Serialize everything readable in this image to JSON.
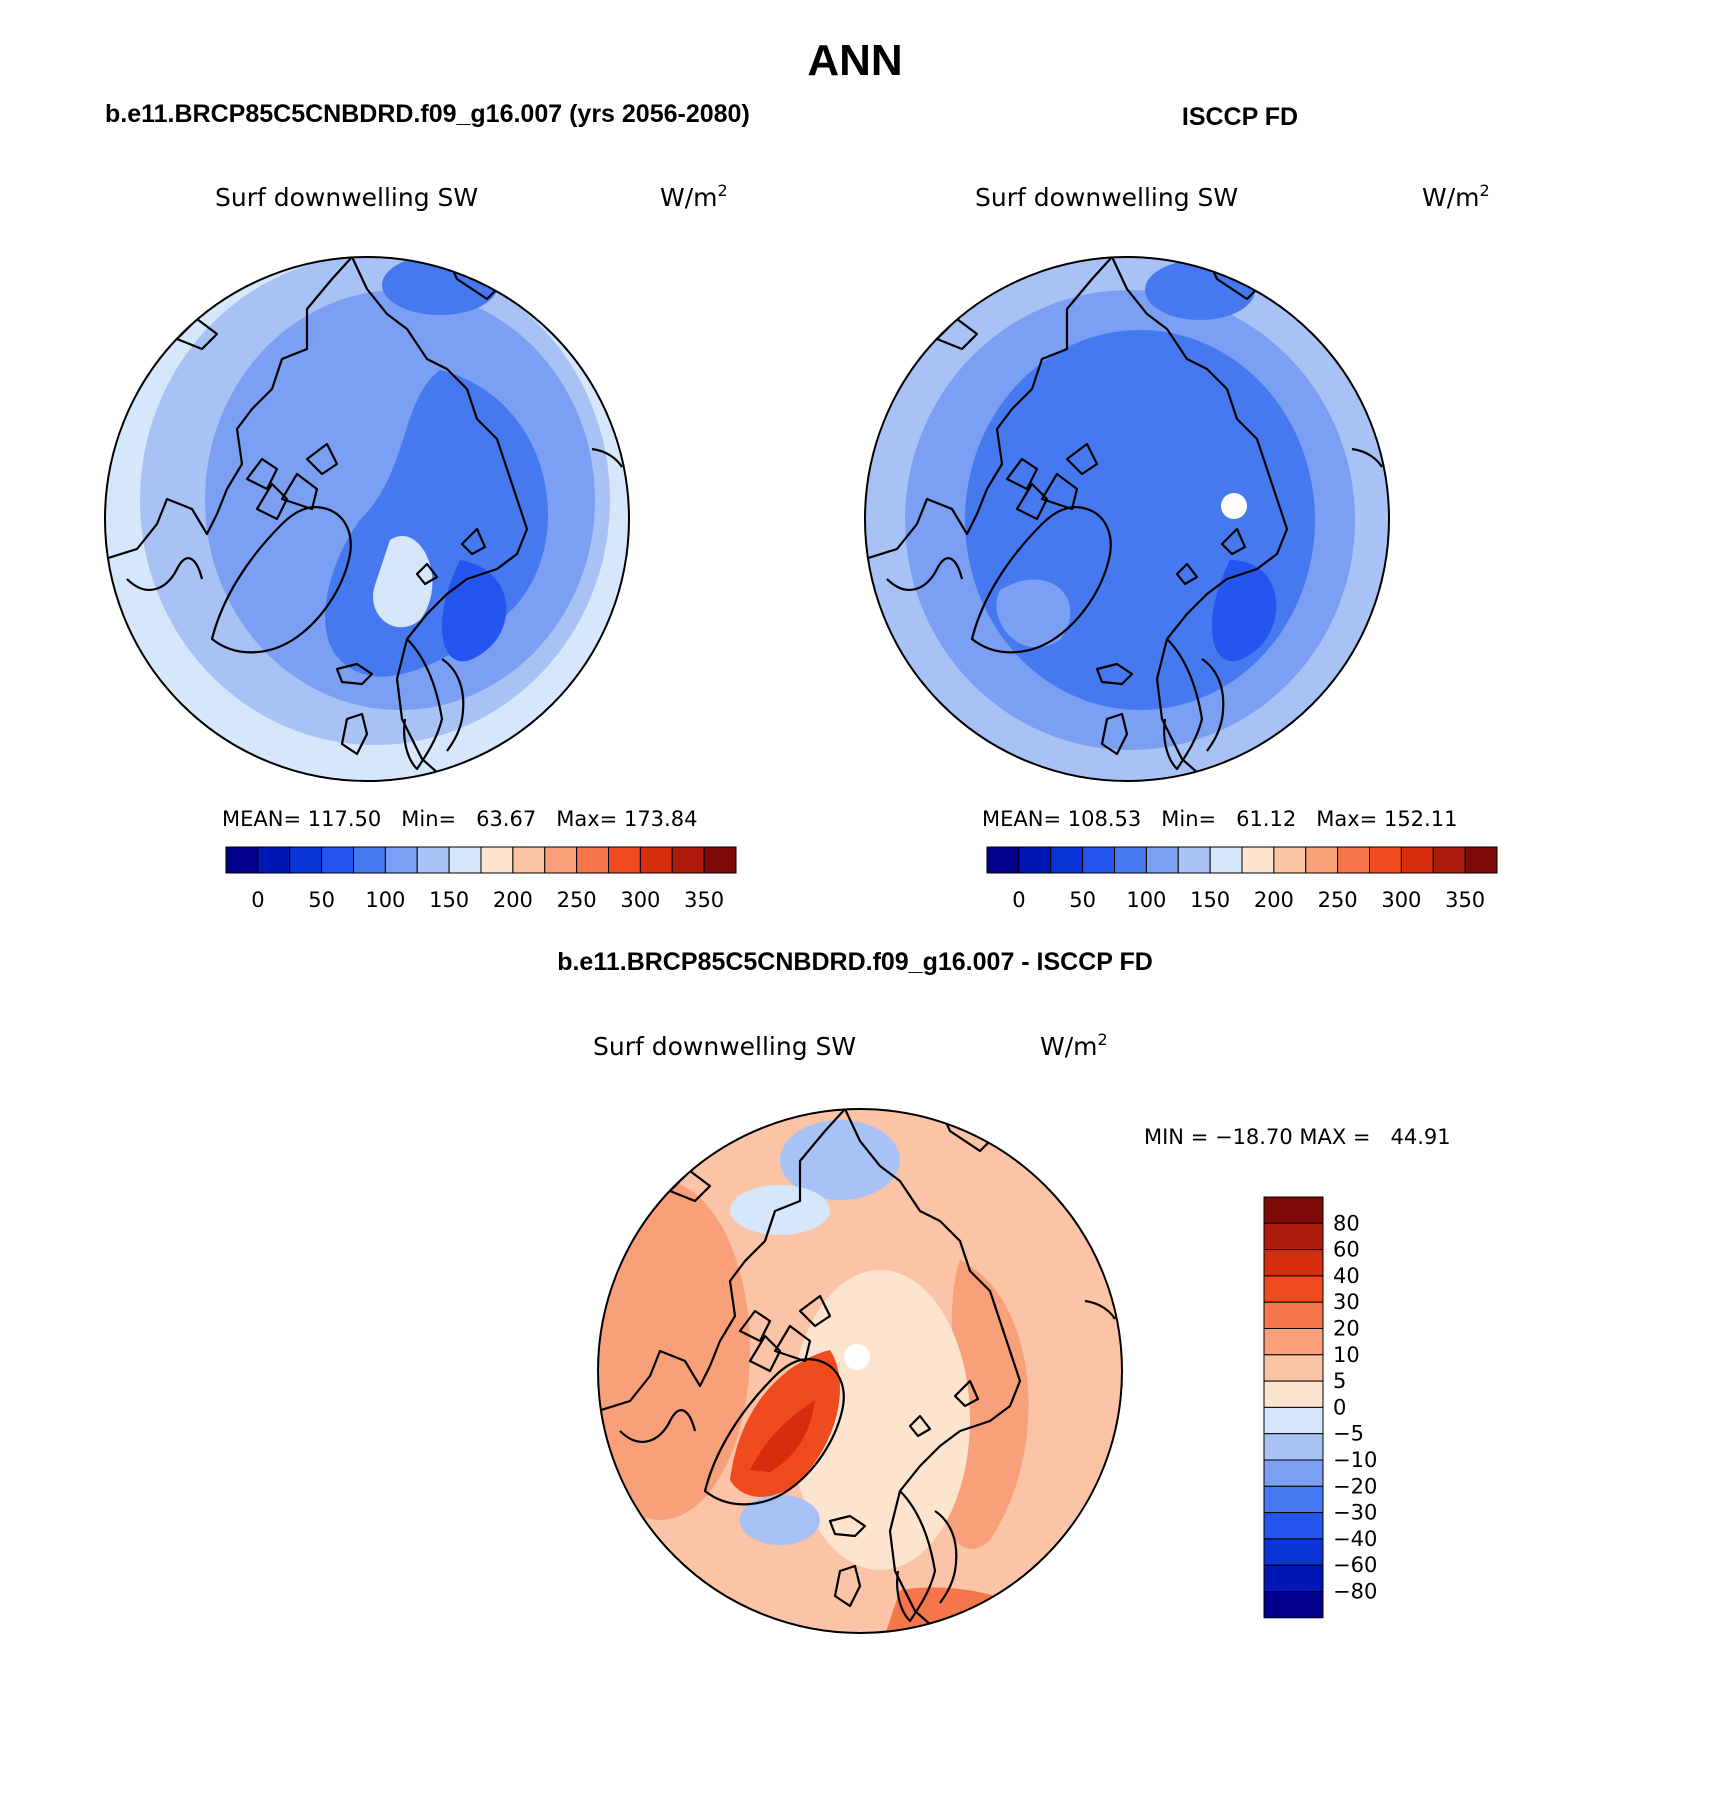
{
  "page_title": "ANN",
  "panels": [
    {
      "title": "b.e11.BRCP85C5CNBDRD.f09_g16.007 (yrs 2056-2080)",
      "variable": "Surf downwelling SW",
      "units": "W/m",
      "units_exp": "2",
      "stats": "MEAN= 117.50   Min=   63.67   Max= 173.84",
      "mean": 117.5,
      "min": 63.67,
      "max": 173.84
    },
    {
      "title": "ISCCP FD",
      "variable": "Surf downwelling SW",
      "units": "W/m",
      "units_exp": "2",
      "stats": "MEAN= 108.53   Min=   61.12   Max= 152.11",
      "mean": 108.53,
      "min": 61.12,
      "max": 152.11
    }
  ],
  "abs_colorbar": {
    "labels": [
      "0",
      "50",
      "100",
      "150",
      "200",
      "250",
      "300",
      "350"
    ],
    "colors": [
      "#00008a",
      "#0016b5",
      "#0a34d6",
      "#2455ef",
      "#4678f0",
      "#7b9ff2",
      "#a8c2f6",
      "#d6e6fb",
      "#fde4cf",
      "#fbc4a6",
      "#f8a07a",
      "#f4764a",
      "#f04b1f",
      "#d52d0e",
      "#ac1a0a",
      "#7b0a08"
    ]
  },
  "diff_panel": {
    "title": "b.e11.BRCP85C5CNBDRD.f09_g16.007 - ISCCP FD",
    "variable": "Surf downwelling SW",
    "units": "W/m",
    "units_exp": "2",
    "stats": "MIN = −18.70 MAX =   44.91",
    "min": -18.7,
    "max": 44.91
  },
  "diff_colorbar": {
    "labels": [
      "80",
      "60",
      "40",
      "30",
      "20",
      "10",
      "5",
      "0",
      "−5",
      "−10",
      "−20",
      "−30",
      "−40",
      "−60",
      "−80"
    ],
    "colors_top_to_bottom": [
      "#7b0a08",
      "#ac1a0a",
      "#d52d0e",
      "#f04b1f",
      "#f4764a",
      "#f8a07a",
      "#fbc4a6",
      "#fde4cf",
      "#d6e6fb",
      "#a8c2f6",
      "#7b9ff2",
      "#4678f0",
      "#2455ef",
      "#0a34d6",
      "#0016b5",
      "#00008a"
    ]
  }
}
